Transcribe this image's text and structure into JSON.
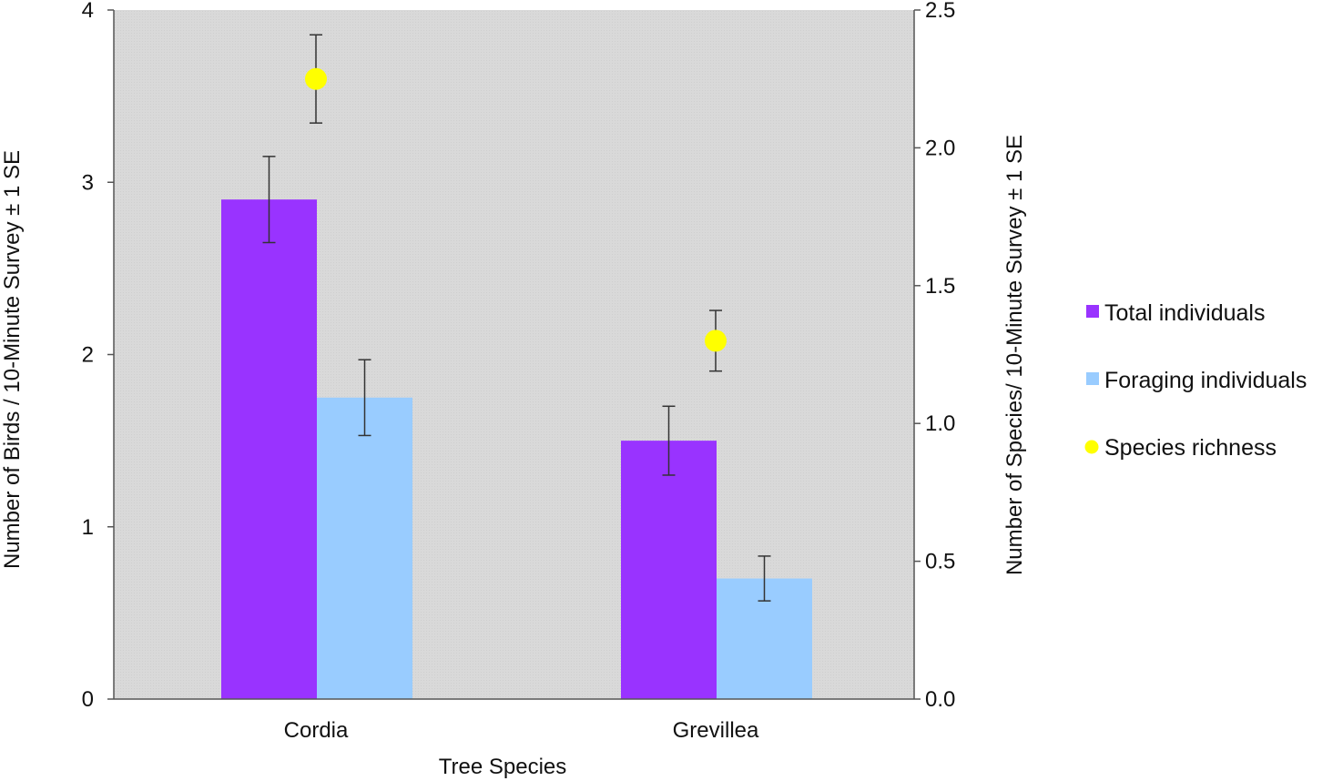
{
  "chart_data": {
    "type": "bar",
    "title": "",
    "xlabel": "Tree Species",
    "ylabel": "Number of Birds / 10-Minute Survey ± 1 SE",
    "y2label": "Number of Species/ 10-Minute Survey ± 1 SE",
    "categories": [
      "Cordia",
      "Grevillea"
    ],
    "ylim": [
      0,
      4
    ],
    "yticks": [
      "0",
      "1",
      "2",
      "3",
      "4"
    ],
    "ytick_values": [
      0,
      1,
      2,
      3,
      4
    ],
    "y2lim": [
      0,
      2.5
    ],
    "y2ticks": [
      "0.0",
      "0.5",
      "1.0",
      "1.5",
      "2.0",
      "2.5"
    ],
    "y2tick_values": [
      0,
      0.5,
      1.0,
      1.5,
      2.0,
      2.5
    ],
    "grid": false,
    "legend_position": "right",
    "series": [
      {
        "name": "Total individuals",
        "kind": "bar",
        "axis": "left",
        "color": "#9933ff",
        "values": [
          2.9,
          1.5
        ],
        "errors": [
          0.25,
          0.2
        ]
      },
      {
        "name": "Foraging individuals",
        "kind": "bar",
        "axis": "left",
        "color": "#99ccff",
        "values": [
          1.75,
          0.7
        ],
        "errors": [
          0.22,
          0.13
        ]
      },
      {
        "name": "Species richness",
        "kind": "point",
        "axis": "right",
        "color": "#ffff00",
        "values": [
          2.25,
          1.3
        ],
        "errors": [
          0.16,
          0.11
        ]
      }
    ],
    "plot_background": "#d9d9d9"
  }
}
